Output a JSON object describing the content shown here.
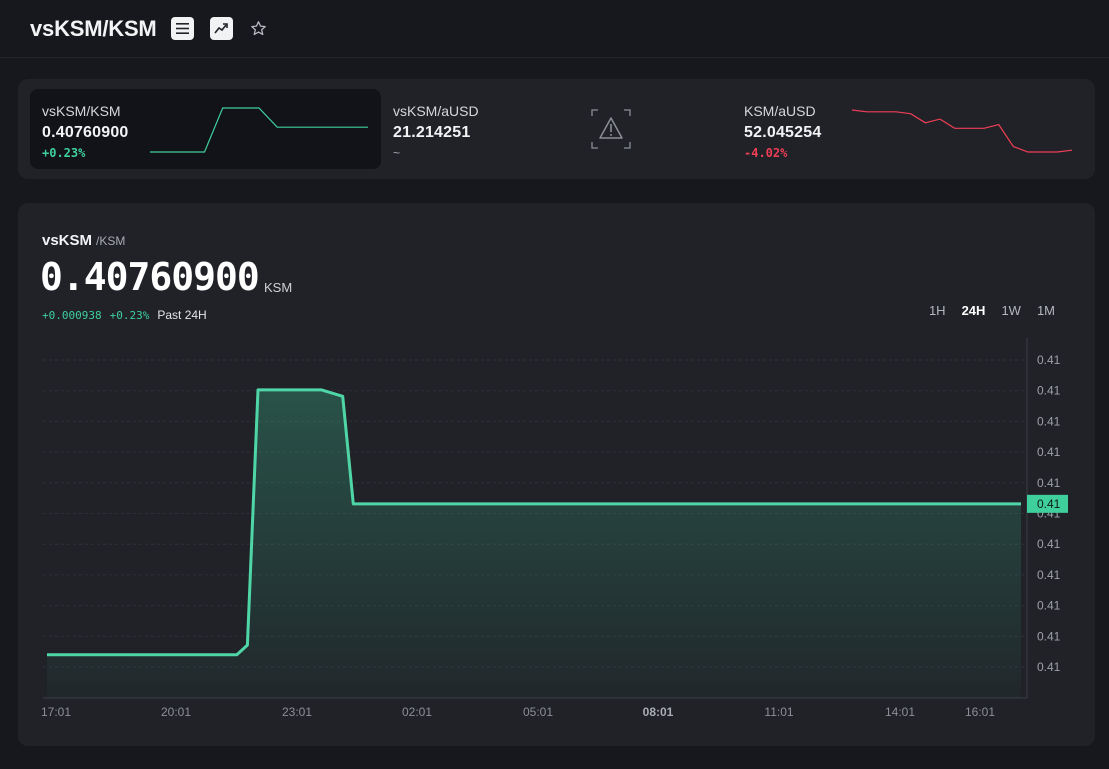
{
  "header": {
    "pair_title": "vsKSM/KSM",
    "icons": [
      "menu-icon",
      "chart-trend-icon",
      "star-icon"
    ]
  },
  "tickers": [
    {
      "pair": "vsKSM/KSM",
      "price": "0.40760900",
      "change": "+0.23%",
      "direction": "up",
      "active": true,
      "sparkline": [
        0.4067,
        0.4067,
        0.4067,
        0.4067,
        0.4083,
        0.4083,
        0.4083,
        0.4076,
        0.4076,
        0.4076,
        0.4076,
        0.4076,
        0.4076
      ]
    },
    {
      "pair": "vsKSM/aUSD",
      "price": "21.214251",
      "change": "~",
      "direction": "none",
      "active": false,
      "chart_unavailable_icon": "warning-icon"
    },
    {
      "pair": "KSM/aUSD",
      "price": "52.045254",
      "change": "-4.02%",
      "direction": "down",
      "active": false,
      "sparkline": [
        54.3,
        54.2,
        54.2,
        54.2,
        54.1,
        53.6,
        53.8,
        53.3,
        53.3,
        53.3,
        53.5,
        52.3,
        52.0,
        52.0,
        52.0,
        52.1
      ]
    }
  ],
  "main": {
    "base": "vsKSM",
    "quote": "/KSM",
    "price": "0.40760900",
    "unit": "KSM",
    "abs_change": "+0.000938",
    "pct_change": "+0.23%",
    "period_label": "Past 24H",
    "timeframes": [
      "1H",
      "24H",
      "1W",
      "1M"
    ],
    "selected_timeframe": "24H"
  },
  "colors": {
    "background": "#17181d",
    "panel": "#202228",
    "up": "#3fcf9c",
    "down": "#f03e55"
  },
  "chart_data": {
    "type": "area",
    "x_tick_labels": [
      "17:01",
      "20:01",
      "23:01",
      "02:01",
      "05:01",
      "08:01",
      "11:01",
      "14:01",
      "16:01"
    ],
    "y_tick_labels": [
      "0.41",
      "0.41",
      "0.41",
      "0.41",
      "0.41",
      "0.41",
      "0.41",
      "0.41",
      "0.41",
      "0.41",
      "0.41"
    ],
    "current_value_label": "0.41",
    "series": [
      {
        "x": [
          "17:01",
          "18:00",
          "19:00",
          "20:00",
          "21:00",
          "21:30",
          "21:45",
          "22:00",
          "23:00",
          "23:30",
          "24:00",
          "00:15",
          "02:01",
          "05:01",
          "08:01",
          "11:01",
          "14:01",
          "16:01"
        ],
        "values": [
          0.40667,
          0.40667,
          0.40667,
          0.40667,
          0.40667,
          0.40667,
          0.40673,
          0.40832,
          0.40832,
          0.40832,
          0.40828,
          0.40761,
          0.40761,
          0.40761,
          0.40761,
          0.40761,
          0.40761,
          0.40761
        ]
      }
    ],
    "grid": true
  }
}
